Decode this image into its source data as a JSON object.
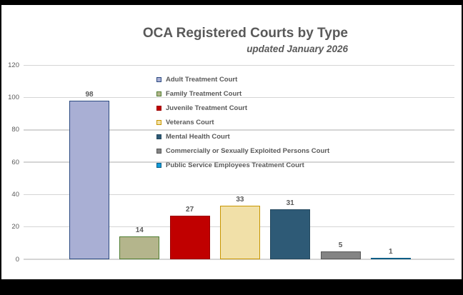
{
  "header": {
    "title": "OCA Registered Courts by Type",
    "subtitle": "updated January 2026"
  },
  "chart_data": {
    "type": "bar",
    "title": "OCA Registered Courts by Type",
    "subtitle": "updated January 2026",
    "xlabel": "",
    "ylabel": "",
    "categories": [
      "Adult Treatment Court",
      "Family Treatment Court",
      "Juvenile Treatment Court",
      "Veterans Court",
      "Mental Health Court",
      "Commercially or Sexually Exploited Persons Court",
      "Public Service Employees Treatment Court"
    ],
    "values": [
      98,
      14,
      27,
      33,
      31,
      5,
      1
    ],
    "series": [
      {
        "label": "Adult Treatment Court",
        "value": 98,
        "fill": "#A9AFD4",
        "border": "#2B4A80"
      },
      {
        "label": "Family Treatment Court",
        "value": 14,
        "fill": "#B4B58C",
        "border": "#507E32"
      },
      {
        "label": "Juvenile Treatment Court",
        "value": 27,
        "fill": "#C00000",
        "border": "#9B0000"
      },
      {
        "label": "Veterans Court",
        "value": 33,
        "fill": "#F1E0A8",
        "border": "#C89600"
      },
      {
        "label": "Mental Health Court",
        "value": 31,
        "fill": "#2E5A76",
        "border": "#24485E"
      },
      {
        "label": "Commercially or Sexually Exploited Persons Court",
        "value": 5,
        "fill": "#848484",
        "border": "#575757"
      },
      {
        "label": "Public Service Employees Treatment Court",
        "value": 1,
        "fill": "#129BD9",
        "border": "#0C5D85"
      }
    ],
    "ylim": [
      0,
      120
    ],
    "yticks": [
      0,
      20,
      40,
      60,
      80,
      100,
      120
    ],
    "grid": true,
    "value_labels": true,
    "legend_position": "inside-upper-center"
  },
  "colors": {
    "text": "#595959",
    "gridline": "#D5D5D5",
    "background": "#FFFFFF",
    "frame": "#000000"
  }
}
